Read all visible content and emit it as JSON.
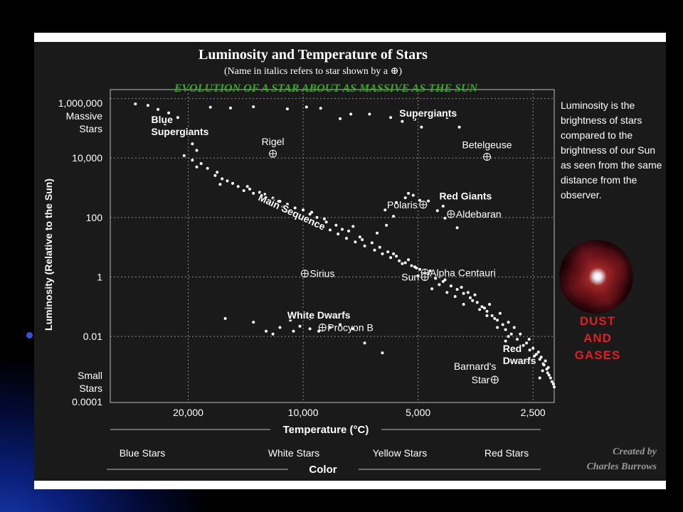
{
  "slide": {
    "side_text": "Luminosity is the brightness of stars compared to the brightness of our Sun as seen from the same distance from the observer.",
    "dust_lines": [
      "DUST",
      "AND",
      "GASES"
    ],
    "credit_lines": [
      "Created by",
      "Charles Burrows"
    ],
    "colors": {
      "panel": "#1a1a1a",
      "subtitle": "#33aa22",
      "dust": "#e02020",
      "credit": "#9a9a9a",
      "accent_blue": "#1b3fb8"
    },
    "nebula_image": "nebula-photo"
  },
  "chart_data": {
    "type": "scatter",
    "title": "Luminosity and Temperature of Stars",
    "subtitle": "(Name in italics refers to star shown by a",
    "headline": "EVOLUTION OF A STAR ABOUT AS MASSIVE AS THE SUN",
    "xlabel": "Temperature (°C)",
    "ylabel": "Luminosity (Relative to the Sun)",
    "x_scale": "log-reversed",
    "y_scale": "log",
    "xlim": [
      32000,
      2200
    ],
    "ylim": [
      6e-05,
      2000000
    ],
    "grid": true,
    "x_ticks": [
      {
        "value": 20000,
        "label": "20,000"
      },
      {
        "value": 10000,
        "label": "10,000"
      },
      {
        "value": 5000,
        "label": "5,000"
      },
      {
        "value": 2500,
        "label": "2,500"
      }
    ],
    "y_ticks": [
      {
        "value": 1000000,
        "label": "1,000,000"
      },
      {
        "value": 10000,
        "label": "10,000"
      },
      {
        "value": 100,
        "label": "100"
      },
      {
        "value": 1,
        "label": "1"
      },
      {
        "value": 0.01,
        "label": "0.01"
      },
      {
        "value": 0.0001,
        "label": "0.0001"
      }
    ],
    "y_end_labels": {
      "top": [
        "Massive",
        "Stars"
      ],
      "bottom": [
        "Small",
        "Stars"
      ]
    },
    "color_bands": {
      "axis_label": "Color",
      "labels": [
        "Blue Stars",
        "White Stars",
        "Yellow Stars",
        "Red Stars"
      ]
    },
    "region_labels": [
      {
        "lines": [
          "Blue",
          "Supergiants"
        ],
        "x": 25000,
        "y": 150000
      },
      {
        "lines": [
          "Supergiants"
        ],
        "x": 5600,
        "y": 250000
      },
      {
        "lines": [
          "Red Giants"
        ],
        "x": 4400,
        "y": 400
      },
      {
        "lines": [
          "White Dwarfs"
        ],
        "x": 11000,
        "y": 0.04
      },
      {
        "lines": [
          "Red",
          "Dwarfs"
        ],
        "x": 3000,
        "y": 0.003
      },
      {
        "lines": [
          "Main Sequence"
        ],
        "x": 10800,
        "y": 120,
        "rotate": 25
      }
    ],
    "named_stars": [
      {
        "name": "Rigel",
        "x": 12000,
        "y": 14000,
        "label_pos": "above"
      },
      {
        "name": "Betelgeuse",
        "x": 3300,
        "y": 11000,
        "label_pos": "above"
      },
      {
        "name": "Polaris",
        "x": 4850,
        "y": 270,
        "label_pos": "left"
      },
      {
        "name": "Aldebaran",
        "x": 4100,
        "y": 130,
        "label_pos": "right"
      },
      {
        "name": "Sirius",
        "x": 9900,
        "y": 1.3,
        "label_pos": "right"
      },
      {
        "name": "Alpha Centauri",
        "x": 4800,
        "y": 1.4,
        "label_pos": "right"
      },
      {
        "name": "Sun",
        "x": 4800,
        "y": 1,
        "label_pos": "left"
      },
      {
        "name": "Procyon B",
        "x": 8900,
        "y": 0.02,
        "label_pos": "right"
      },
      {
        "name": "Barnard's Star",
        "x": 3150,
        "y": 0.00035,
        "label_pos": "left"
      }
    ],
    "series": [
      {
        "points": [
          [
            27500,
            660000
          ],
          [
            25500,
            590000
          ],
          [
            24000,
            430000
          ],
          [
            22500,
            330000
          ],
          [
            21300,
            230000
          ],
          [
            23000,
            140000
          ],
          [
            20000,
            66000
          ],
          [
            19500,
            30000
          ],
          [
            19000,
            18000
          ],
          [
            17500,
            510000
          ],
          [
            15500,
            480000
          ],
          [
            13500,
            530000
          ],
          [
            11000,
            450000
          ],
          [
            9800,
            520000
          ],
          [
            9000,
            470000
          ],
          [
            8000,
            210000
          ],
          [
            7500,
            300000
          ],
          [
            6700,
            300000
          ],
          [
            5900,
            230000
          ],
          [
            5500,
            170000
          ],
          [
            5250,
            290000
          ],
          [
            5100,
            200000
          ],
          [
            4900,
            110000
          ],
          [
            4400,
            330000
          ],
          [
            4600,
            250000
          ],
          [
            4200,
            230000
          ],
          [
            3900,
            110000
          ],
          [
            20500,
            12000
          ],
          [
            19500,
            8500
          ],
          [
            18500,
            6500
          ],
          [
            17800,
            4500
          ],
          [
            16800,
            3300
          ],
          [
            16300,
            2000
          ],
          [
            15300,
            1400
          ],
          [
            14800,
            1100
          ],
          [
            14300,
            800
          ],
          [
            13500,
            650
          ],
          [
            12800,
            480
          ],
          [
            12300,
            400
          ],
          [
            11800,
            300
          ],
          [
            11300,
            230
          ],
          [
            10800,
            160
          ],
          [
            10200,
            120
          ],
          [
            9800,
            90
          ],
          [
            9400,
            65
          ],
          [
            8900,
            50
          ],
          [
            8500,
            38
          ],
          [
            8100,
            28
          ],
          [
            7700,
            20
          ],
          [
            7300,
            15
          ],
          [
            6900,
            11
          ],
          [
            6500,
            8
          ],
          [
            6200,
            6
          ],
          [
            5900,
            4.5
          ],
          [
            5600,
            3.5
          ],
          [
            5400,
            3
          ],
          [
            5200,
            2.4
          ],
          [
            4950,
            1.8
          ],
          [
            4700,
            1.3
          ],
          [
            4500,
            0.9
          ],
          [
            4300,
            0.7
          ],
          [
            4100,
            0.5
          ],
          [
            3950,
            0.38
          ],
          [
            3800,
            0.28
          ],
          [
            3650,
            0.2
          ],
          [
            3500,
            0.14
          ],
          [
            3400,
            0.1
          ],
          [
            3300,
            0.07
          ],
          [
            3200,
            0.05
          ],
          [
            3100,
            0.035
          ],
          [
            3000,
            0.025
          ],
          [
            2950,
            0.017
          ],
          [
            2850,
            0.012
          ],
          [
            2750,
            0.008
          ],
          [
            2650,
            0.005
          ],
          [
            2550,
            0.0035
          ],
          [
            2450,
            0.0025
          ],
          [
            2400,
            0.0017
          ],
          [
            2350,
            0.0012
          ],
          [
            2300,
            0.0008
          ],
          [
            2270,
            0.0005
          ],
          [
            2230,
            0.0003
          ],
          [
            2200,
            0.0002
          ],
          [
            19000,
            5000
          ],
          [
            17000,
            2600
          ],
          [
            15800,
            1700
          ],
          [
            13800,
            900
          ],
          [
            12600,
            600
          ],
          [
            11600,
            350
          ],
          [
            10500,
            210
          ],
          [
            9600,
            130
          ],
          [
            8700,
            70
          ],
          [
            7900,
            40
          ],
          [
            7100,
            22
          ],
          [
            6300,
            10
          ],
          [
            5700,
            5
          ],
          [
            5300,
            3.8
          ],
          [
            5050,
            2
          ],
          [
            4650,
            1.6
          ],
          [
            4250,
            0.8
          ],
          [
            3850,
            0.45
          ],
          [
            3550,
            0.25
          ],
          [
            3250,
            0.12
          ],
          [
            3050,
            0.06
          ],
          [
            2900,
            0.03
          ],
          [
            2700,
            0.012
          ],
          [
            2600,
            0.006
          ],
          [
            2500,
            0.004
          ],
          [
            2380,
            0.002
          ],
          [
            2320,
            0.0015
          ],
          [
            2280,
            0.0009
          ],
          [
            2250,
            0.0004
          ],
          [
            2210,
            0.00025
          ],
          [
            16500,
            1300
          ],
          [
            13000,
            700
          ],
          [
            11000,
            280
          ],
          [
            9200,
            100
          ],
          [
            8200,
            55
          ],
          [
            7000,
            18
          ],
          [
            6000,
            7
          ],
          [
            5100,
            2.2
          ],
          [
            4400,
            0.55
          ],
          [
            3700,
            0.3
          ],
          [
            3350,
            0.09
          ],
          [
            3150,
            0.04
          ],
          [
            2800,
            0.02
          ],
          [
            2560,
            0.008
          ],
          [
            2420,
            0.003
          ],
          [
            2340,
            0.0011
          ],
          [
            2290,
            0.0006
          ],
          [
            14000,
            1100
          ],
          [
            12000,
            450
          ],
          [
            10000,
            180
          ],
          [
            8800,
            90
          ],
          [
            7600,
            35
          ],
          [
            6600,
            14
          ],
          [
            5800,
            6
          ],
          [
            4600,
            0.4
          ],
          [
            4000,
            0.22
          ],
          [
            3600,
            0.16
          ],
          [
            3450,
            0.08
          ],
          [
            3100,
            0.02
          ],
          [
            2900,
            0.01
          ],
          [
            2700,
            0.004
          ],
          [
            2480,
            0.0022
          ],
          [
            2360,
            0.0007
          ],
          [
            11500,
            350
          ],
          [
            9500,
            150
          ],
          [
            7400,
            50
          ],
          [
            6400,
            30
          ],
          [
            5500,
            2.8
          ],
          [
            5000,
            1.1
          ],
          [
            4200,
            0.3
          ],
          [
            3800,
            0.12
          ],
          [
            3300,
            0.05
          ],
          [
            2950,
            0.007
          ],
          [
            2600,
            0.0015
          ],
          [
            2400,
            0.0004
          ],
          [
            6100,
            180
          ],
          [
            5700,
            320
          ],
          [
            5400,
            460
          ],
          [
            5300,
            650
          ],
          [
            5150,
            560
          ],
          [
            4950,
            380
          ],
          [
            4700,
            360
          ],
          [
            4450,
            170
          ],
          [
            4300,
            240
          ],
          [
            4150,
            150
          ],
          [
            3950,
            45
          ],
          [
            4250,
            95
          ],
          [
            5800,
            110
          ],
          [
            6050,
            55
          ],
          [
            16000,
            0.04
          ],
          [
            13500,
            0.03
          ],
          [
            12500,
            0.015
          ],
          [
            12000,
            0.012
          ],
          [
            11500,
            0.02
          ],
          [
            10800,
            0.035
          ],
          [
            10200,
            0.022
          ],
          [
            9600,
            0.018
          ],
          [
            9100,
            0.015
          ],
          [
            8500,
            0.02
          ],
          [
            8000,
            0.025
          ],
          [
            7400,
            0.018
          ],
          [
            6900,
            0.006
          ],
          [
            6200,
            0.0028
          ],
          [
            9600,
            0.04
          ],
          [
            10600,
            0.015
          ]
        ]
      }
    ]
  }
}
